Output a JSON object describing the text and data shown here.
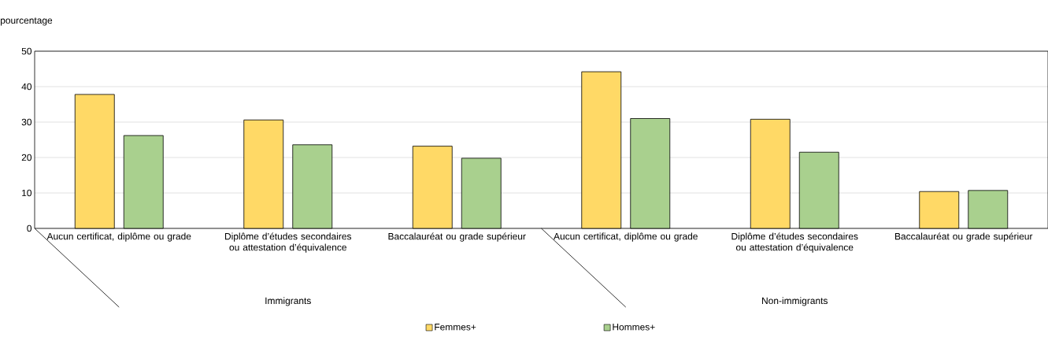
{
  "chart_data": {
    "type": "bar",
    "ylabel": "pourcentage",
    "categories": [
      "Aucun certificat, diplôme ou grade",
      "Diplôme d’études secondaires ou attestation d’équivalence",
      "Baccalauréat ou grade supérieur",
      "Aucun certificat, diplôme ou grade",
      "Diplôme d’études secondaires ou attestation d’équivalence",
      "Baccalauréat ou grade supérieur"
    ],
    "series": [
      {
        "name": "Femmes+",
        "color": "#ffd966",
        "values": [
          37.8,
          30.6,
          23.2,
          44.2,
          30.8,
          10.4
        ]
      },
      {
        "name": "Hommes+",
        "color": "#a9d08e",
        "values": [
          26.2,
          23.6,
          19.8,
          31.0,
          21.5,
          10.7
        ]
      }
    ],
    "annotations": [
      "Immigrants",
      "Non-immigrants"
    ],
    "ylim": [
      0,
      50
    ],
    "yticks": [
      0,
      10,
      20,
      30,
      40,
      50
    ],
    "grid": "y",
    "legend": "bottom"
  }
}
